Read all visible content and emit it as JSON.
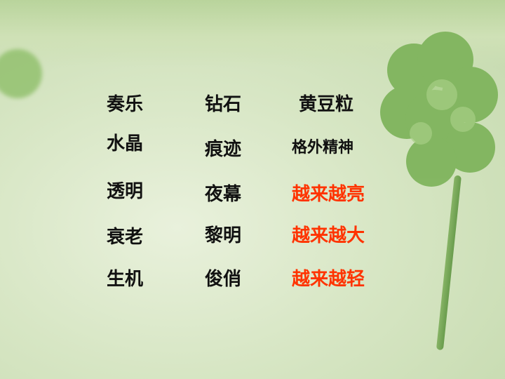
{
  "rows": [
    {
      "col1": "奏乐",
      "col2": "钻石",
      "col3": "黄豆粒"
    },
    {
      "col1": "水晶",
      "col2": "痕迹",
      "col3": "格外精神"
    },
    {
      "col1": "透明",
      "col2": "夜幕",
      "col3": "越来越亮"
    },
    {
      "col1": "衰老",
      "col2": "黎明",
      "col3": "越来越大"
    },
    {
      "col1": "生机",
      "col2": "俊俏",
      "col3": "越来越轻"
    }
  ],
  "colors": {
    "highlight": "#ff3300",
    "text": "#111111",
    "background": "#d7e6c4"
  },
  "background_decoration": "four-leaf-clover"
}
